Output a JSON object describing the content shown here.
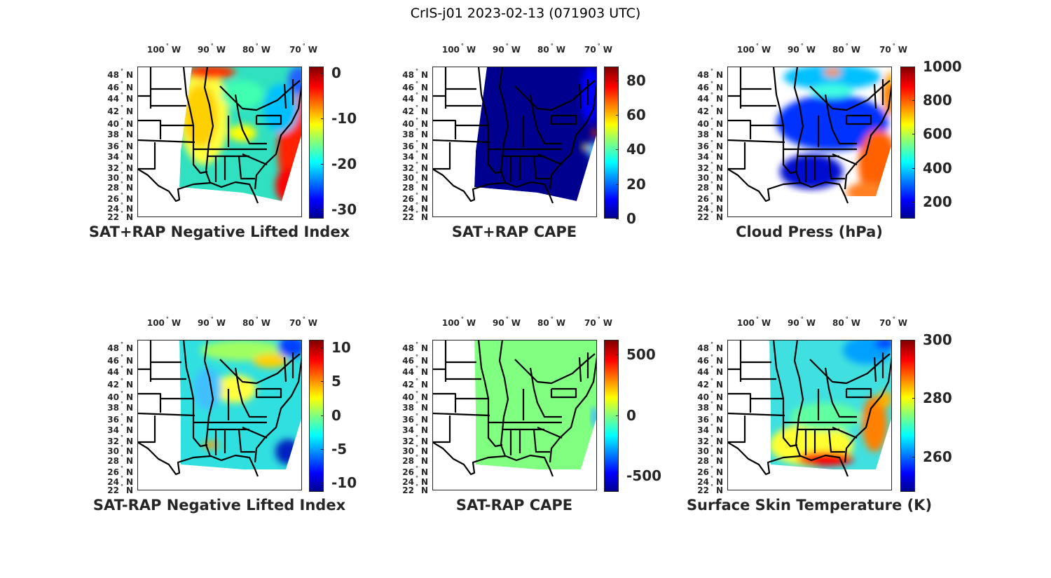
{
  "figure_title": "CrIS-j01 2023-02-13 (071903 UTC)",
  "chart_data": [
    {
      "type": "heatmap",
      "title": "SAT+RAP Negative Lifted Index",
      "colorbar_ticks": [
        0,
        -10,
        -20,
        -30
      ],
      "clim": [
        -32,
        1.4
      ],
      "colormap": "jet",
      "lon_ticks": [
        "100",
        "90",
        "80",
        "70"
      ],
      "lat_ticks": [
        "48",
        "46",
        "44",
        "42",
        "40",
        "38",
        "36",
        "34",
        "32",
        "30",
        "28",
        "26",
        "24",
        "22"
      ],
      "lon_suffix": "W",
      "lat_suffix": "N",
      "deg": "°"
    },
    {
      "type": "heatmap",
      "title": "SAT+RAP CAPE",
      "colorbar_ticks": [
        80,
        60,
        40,
        20,
        0
      ],
      "clim": [
        0,
        88
      ],
      "colormap": "jet",
      "lon_ticks": [
        "100",
        "90",
        "80",
        "70"
      ],
      "lat_ticks": [
        "48",
        "46",
        "44",
        "42",
        "40",
        "38",
        "36",
        "34",
        "32",
        "30",
        "28",
        "26",
        "24",
        "22"
      ],
      "lon_suffix": "W",
      "lat_suffix": "N",
      "deg": "°"
    },
    {
      "type": "heatmap",
      "title": "Cloud Press (hPa)",
      "colorbar_ticks": [
        1000,
        800,
        600,
        400,
        200
      ],
      "clim": [
        100,
        1000
      ],
      "colormap": "jet",
      "lon_ticks": [
        "100",
        "90",
        "80",
        "70"
      ],
      "lat_ticks": [
        "48",
        "46",
        "44",
        "42",
        "40",
        "38",
        "36",
        "34",
        "32",
        "30",
        "28",
        "26",
        "24",
        "22"
      ],
      "lon_suffix": "W",
      "lat_suffix": "N",
      "deg": "°"
    },
    {
      "type": "heatmap",
      "title": "SAT-RAP Negative Lifted Index",
      "colorbar_ticks": [
        10,
        5,
        0,
        -5,
        -10
      ],
      "clim": [
        -11.3,
        11.1
      ],
      "colormap": "jet",
      "lon_ticks": [
        "100",
        "90",
        "80",
        "70"
      ],
      "lat_ticks": [
        "48",
        "46",
        "44",
        "42",
        "40",
        "38",
        "36",
        "34",
        "32",
        "30",
        "28",
        "26",
        "24",
        "22"
      ],
      "lon_suffix": "W",
      "lat_suffix": "N",
      "deg": "°"
    },
    {
      "type": "heatmap",
      "title": "SAT-RAP CAPE",
      "colorbar_ticks": [
        500,
        0,
        -500
      ],
      "clim": [
        -630,
        620
      ],
      "colormap": "jet",
      "lon_ticks": [
        "100",
        "90",
        "80",
        "70"
      ],
      "lat_ticks": [
        "48",
        "46",
        "44",
        "42",
        "40",
        "38",
        "36",
        "34",
        "32",
        "30",
        "28",
        "26",
        "24",
        "22"
      ],
      "lon_suffix": "W",
      "lat_suffix": "N",
      "deg": "°"
    },
    {
      "type": "heatmap",
      "title": "Surface Skin Temperature (K)",
      "colorbar_ticks": [
        300,
        280,
        260
      ],
      "clim": [
        248,
        300
      ],
      "colormap": "jet",
      "lon_ticks": [
        "100",
        "90",
        "80",
        "70"
      ],
      "lat_ticks": [
        "48",
        "46",
        "44",
        "42",
        "40",
        "38",
        "36",
        "34",
        "32",
        "30",
        "28",
        "26",
        "24",
        "22"
      ],
      "lon_suffix": "W",
      "lat_suffix": "N",
      "deg": "°"
    }
  ]
}
